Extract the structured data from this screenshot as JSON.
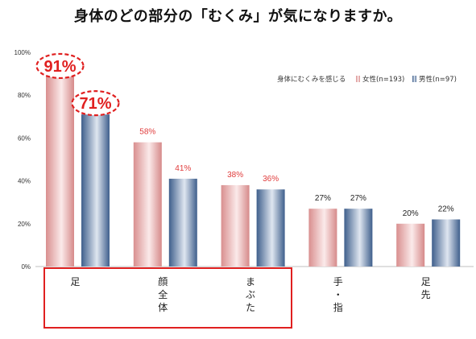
{
  "title": "身体のどの部分の「むくみ」が気になりますか。",
  "chart_data": {
    "type": "bar",
    "categories": [
      "足",
      "顔全体",
      "まぶた",
      "手・指",
      "足先"
    ],
    "series": [
      {
        "name": "女性(n=193)",
        "values": [
          91,
          58,
          38,
          27,
          20
        ]
      },
      {
        "name": "男性(n=97)",
        "values": [
          71,
          41,
          36,
          27,
          22
        ]
      }
    ],
    "value_labels": {
      "女性(n=193)": [
        "91%",
        "58%",
        "38%",
        "27%",
        "20%"
      ],
      "男性(n=97)": [
        "71%",
        "41%",
        "36%",
        "27%",
        "22%"
      ]
    },
    "ylim": [
      0,
      100
    ],
    "yticks": [
      "0%",
      "20%",
      "40%",
      "60%",
      "80%",
      "100%"
    ],
    "legend_title": "身体にむくみを感じる",
    "legend_position": "top-right",
    "grid": false,
    "colors": {
      "female": "#e8a8a8",
      "female_label": "#e03b3b",
      "male": "#5a7aa6",
      "highlight": "#e02020"
    }
  }
}
